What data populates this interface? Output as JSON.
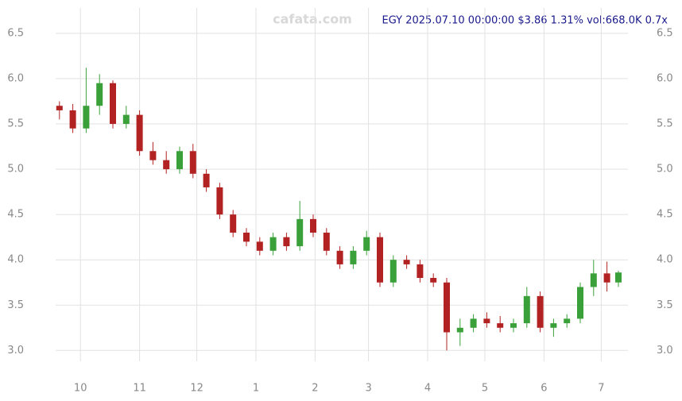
{
  "chart_data": {
    "type": "candlestick",
    "title": "EGY 2025.07.10 00:00:00 $3.86 1.31% vol:668.0K 0.7x",
    "watermark": "cafata.com",
    "x": [
      -11,
      -4,
      3,
      10,
      17,
      24,
      31,
      38,
      45,
      52,
      59,
      66,
      73,
      80,
      87,
      94,
      101,
      108,
      115,
      122,
      129,
      136,
      143,
      150,
      157,
      164,
      171,
      178,
      185,
      192,
      199,
      206,
      213,
      220,
      227,
      234,
      241,
      248,
      255,
      262,
      269,
      276,
      282
    ],
    "open": [
      5.7,
      5.65,
      5.45,
      5.7,
      5.95,
      5.5,
      5.6,
      5.2,
      5.1,
      5.0,
      5.2,
      4.95,
      4.8,
      4.5,
      4.3,
      4.2,
      4.1,
      4.25,
      4.15,
      4.45,
      4.3,
      4.1,
      3.95,
      4.1,
      4.25,
      3.75,
      4.0,
      3.95,
      3.8,
      3.75,
      3.2,
      3.25,
      3.35,
      3.3,
      3.25,
      3.3,
      3.6,
      3.25,
      3.3,
      3.35,
      3.7,
      3.85,
      3.75
    ],
    "high": [
      5.75,
      5.72,
      6.12,
      6.05,
      5.98,
      5.7,
      5.65,
      5.3,
      5.2,
      5.25,
      5.28,
      5.0,
      4.85,
      4.55,
      4.35,
      4.25,
      4.3,
      4.3,
      4.65,
      4.5,
      4.35,
      4.15,
      4.15,
      4.32,
      4.3,
      4.05,
      4.05,
      4.0,
      3.85,
      3.8,
      3.35,
      3.4,
      3.42,
      3.38,
      3.35,
      3.7,
      3.65,
      3.35,
      3.4,
      3.75,
      4.0,
      3.98,
      3.88
    ],
    "low": [
      5.55,
      5.4,
      5.4,
      5.6,
      5.45,
      5.45,
      5.15,
      5.05,
      4.95,
      4.95,
      4.9,
      4.75,
      4.45,
      4.25,
      4.15,
      4.05,
      4.05,
      4.1,
      4.1,
      4.25,
      4.05,
      3.9,
      3.9,
      4.05,
      3.7,
      3.7,
      3.9,
      3.75,
      3.7,
      3.0,
      3.05,
      3.2,
      3.25,
      3.2,
      3.2,
      3.25,
      3.2,
      3.15,
      3.25,
      3.3,
      3.6,
      3.65,
      3.7
    ],
    "close": [
      5.65,
      5.45,
      5.7,
      5.95,
      5.5,
      5.6,
      5.2,
      5.1,
      5.0,
      5.2,
      4.95,
      4.8,
      4.5,
      4.3,
      4.2,
      4.1,
      4.25,
      4.15,
      4.45,
      4.3,
      4.1,
      3.95,
      4.1,
      4.25,
      3.75,
      4.0,
      3.95,
      3.8,
      3.75,
      3.2,
      3.25,
      3.35,
      3.3,
      3.25,
      3.3,
      3.6,
      3.25,
      3.3,
      3.35,
      3.7,
      3.85,
      3.75,
      3.86
    ],
    "up_color": "#3aa03a",
    "down_color": "#b22222",
    "xlim": [
      -13,
      287
    ],
    "xticks": [
      {
        "value": 0,
        "label": "10"
      },
      {
        "value": 31,
        "label": "11"
      },
      {
        "value": 61,
        "label": "12"
      },
      {
        "value": 92,
        "label": "1"
      },
      {
        "value": 123,
        "label": "2"
      },
      {
        "value": 151,
        "label": "3"
      },
      {
        "value": 182,
        "label": "4"
      },
      {
        "value": 212,
        "label": "5"
      },
      {
        "value": 243,
        "label": "6"
      },
      {
        "value": 273,
        "label": "7"
      }
    ],
    "ylim": [
      2.88,
      6.78
    ],
    "yticks": [
      {
        "value": 3,
        "label": "3.0"
      },
      3.5,
      {
        "value": 4,
        "label": "4.0"
      },
      4.5,
      {
        "value": 5,
        "label": "5.0"
      },
      5.5,
      {
        "value": 6,
        "label": "6.0"
      },
      6.5
    ],
    "grid": true
  }
}
